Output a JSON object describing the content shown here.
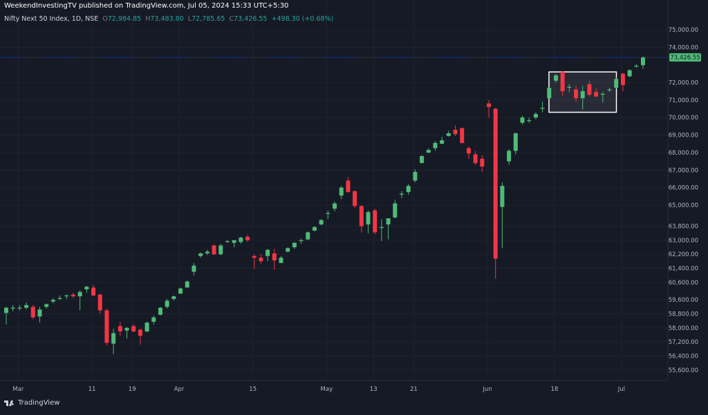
{
  "header": {
    "publish_line": "WeekendInvestingTV published on TradingView.com, Jul 05, 2024 15:33 UTC+5:30",
    "symbol": "Nifty Next 50 Index, 1D, NSE",
    "open_label": "O",
    "open": "72,984.85",
    "high_label": "H",
    "high": "73,483.80",
    "low_label": "L",
    "low": "72,785.65",
    "close_label": "C",
    "close": "73,426.55",
    "change": "+498.30 (+0.68%)"
  },
  "footer": {
    "brand": "TradingView"
  },
  "colors": {
    "background": "#161a25",
    "up": "#4fbb78",
    "down": "#f23645",
    "price_line": "#2962ff",
    "price_label_bg": "#4fbb78",
    "highlight_box": "#ffffff"
  },
  "chart_data": {
    "type": "candlestick",
    "title": "",
    "y_axis_position": "right",
    "ylim": [
      55000,
      75600
    ],
    "y_ticks": [
      "75,000.00",
      "74,000.00",
      "72,000.00",
      "71,000.00",
      "70,000.00",
      "69,000.00",
      "68,000.00",
      "67,000.00",
      "66,000.00",
      "65,000.00",
      "63,800.00",
      "63,000.00",
      "62,200.00",
      "61,400.00",
      "60,600.00",
      "59,600.00",
      "58,800.00",
      "58,000.00",
      "57,200.00",
      "56,400.00",
      "55,600.00"
    ],
    "x_ticks": [
      "Mar",
      "11",
      "19",
      "Apr",
      "15",
      "May",
      "13",
      "21",
      "Jun",
      "18",
      "Jul"
    ],
    "last_price_label": "73,426.55",
    "last_price": 73426.55,
    "highlight_box": {
      "from_candle": 82,
      "to_candle": 90,
      "ylim": [
        70300,
        72600
      ]
    },
    "candles": [
      {
        "o": 58850,
        "h": 59200,
        "l": 58200,
        "c": 59150
      },
      {
        "o": 59100,
        "h": 59300,
        "l": 58950,
        "c": 59150
      },
      {
        "o": 59100,
        "h": 59300,
        "l": 59000,
        "c": 59150
      },
      {
        "o": 59150,
        "h": 59450,
        "l": 59050,
        "c": 59300
      },
      {
        "o": 59200,
        "h": 59300,
        "l": 58500,
        "c": 58600
      },
      {
        "o": 58650,
        "h": 59200,
        "l": 58300,
        "c": 59050
      },
      {
        "o": 59200,
        "h": 59400,
        "l": 59100,
        "c": 59350
      },
      {
        "o": 59500,
        "h": 59700,
        "l": 59400,
        "c": 59600
      },
      {
        "o": 59650,
        "h": 59850,
        "l": 59600,
        "c": 59700
      },
      {
        "o": 59800,
        "h": 59900,
        "l": 59650,
        "c": 59850
      },
      {
        "o": 59900,
        "h": 60000,
        "l": 59700,
        "c": 59800
      },
      {
        "o": 59800,
        "h": 60150,
        "l": 59000,
        "c": 60050
      },
      {
        "o": 60200,
        "h": 60400,
        "l": 60000,
        "c": 60350
      },
      {
        "o": 60300,
        "h": 60450,
        "l": 59800,
        "c": 59850
      },
      {
        "o": 59900,
        "h": 59950,
        "l": 58800,
        "c": 59000
      },
      {
        "o": 59000,
        "h": 59100,
        "l": 57000,
        "c": 57150
      },
      {
        "o": 57100,
        "h": 57950,
        "l": 56500,
        "c": 57700
      },
      {
        "o": 58100,
        "h": 58350,
        "l": 57550,
        "c": 57800
      },
      {
        "o": 57850,
        "h": 58050,
        "l": 57400,
        "c": 58000
      },
      {
        "o": 58100,
        "h": 58200,
        "l": 57750,
        "c": 57800
      },
      {
        "o": 57900,
        "h": 57950,
        "l": 57050,
        "c": 57550
      },
      {
        "o": 57800,
        "h": 58350,
        "l": 57750,
        "c": 58300
      },
      {
        "o": 58350,
        "h": 58700,
        "l": 58200,
        "c": 58600
      },
      {
        "o": 58750,
        "h": 59200,
        "l": 58700,
        "c": 59150
      },
      {
        "o": 59200,
        "h": 59650,
        "l": 59100,
        "c": 59550
      },
      {
        "o": 59650,
        "h": 59850,
        "l": 59550,
        "c": 59800
      },
      {
        "o": 59950,
        "h": 60300,
        "l": 59950,
        "c": 60250
      },
      {
        "o": 60300,
        "h": 60700,
        "l": 60300,
        "c": 60650
      },
      {
        "o": 61200,
        "h": 61700,
        "l": 61000,
        "c": 61550
      },
      {
        "o": 62100,
        "h": 62300,
        "l": 62000,
        "c": 62250
      },
      {
        "o": 62250,
        "h": 62450,
        "l": 62150,
        "c": 62350
      },
      {
        "o": 62700,
        "h": 62750,
        "l": 62150,
        "c": 62200
      },
      {
        "o": 62200,
        "h": 62800,
        "l": 62150,
        "c": 62700
      },
      {
        "o": 62900,
        "h": 63000,
        "l": 62850,
        "c": 62950
      },
      {
        "o": 62850,
        "h": 63000,
        "l": 62600,
        "c": 63000
      },
      {
        "o": 62900,
        "h": 63200,
        "l": 62800,
        "c": 63150
      },
      {
        "o": 63200,
        "h": 63300,
        "l": 62900,
        "c": 63000
      },
      {
        "o": 62100,
        "h": 62200,
        "l": 61350,
        "c": 62000
      },
      {
        "o": 62000,
        "h": 62200,
        "l": 61650,
        "c": 61800
      },
      {
        "o": 62100,
        "h": 62500,
        "l": 61800,
        "c": 62450
      },
      {
        "o": 62250,
        "h": 62500,
        "l": 61300,
        "c": 61850
      },
      {
        "o": 61700,
        "h": 62100,
        "l": 61700,
        "c": 62000
      },
      {
        "o": 62350,
        "h": 62600,
        "l": 62300,
        "c": 62550
      },
      {
        "o": 62600,
        "h": 62900,
        "l": 62500,
        "c": 62850
      },
      {
        "o": 62950,
        "h": 63100,
        "l": 62800,
        "c": 63000
      },
      {
        "o": 63050,
        "h": 63500,
        "l": 63000,
        "c": 63450
      },
      {
        "o": 63550,
        "h": 63800,
        "l": 63500,
        "c": 63750
      },
      {
        "o": 63900,
        "h": 64200,
        "l": 63850,
        "c": 64150
      },
      {
        "o": 64500,
        "h": 64700,
        "l": 64200,
        "c": 64550
      },
      {
        "o": 64800,
        "h": 65200,
        "l": 64650,
        "c": 65100
      },
      {
        "o": 65550,
        "h": 66100,
        "l": 65350,
        "c": 66000
      },
      {
        "o": 66400,
        "h": 66600,
        "l": 65700,
        "c": 65750
      },
      {
        "o": 65800,
        "h": 65850,
        "l": 64850,
        "c": 64950
      },
      {
        "o": 64950,
        "h": 65000,
        "l": 63450,
        "c": 63800
      },
      {
        "o": 63900,
        "h": 64700,
        "l": 63400,
        "c": 64600
      },
      {
        "o": 64700,
        "h": 64800,
        "l": 63350,
        "c": 63450
      },
      {
        "o": 63700,
        "h": 64200,
        "l": 62950,
        "c": 63750
      },
      {
        "o": 63900,
        "h": 64250,
        "l": 63050,
        "c": 64250
      },
      {
        "o": 64300,
        "h": 65300,
        "l": 64250,
        "c": 65100
      },
      {
        "o": 65600,
        "h": 65800,
        "l": 65400,
        "c": 65650
      },
      {
        "o": 65750,
        "h": 66200,
        "l": 65600,
        "c": 66100
      },
      {
        "o": 66400,
        "h": 67050,
        "l": 66300,
        "c": 66900
      },
      {
        "o": 67400,
        "h": 67850,
        "l": 67400,
        "c": 67800
      },
      {
        "o": 68000,
        "h": 68250,
        "l": 67950,
        "c": 68150
      },
      {
        "o": 68250,
        "h": 68650,
        "l": 68100,
        "c": 68550
      },
      {
        "o": 68500,
        "h": 68900,
        "l": 68500,
        "c": 68700
      },
      {
        "o": 68950,
        "h": 69250,
        "l": 68900,
        "c": 69100
      },
      {
        "o": 69300,
        "h": 69550,
        "l": 68950,
        "c": 69050
      },
      {
        "o": 69400,
        "h": 69400,
        "l": 68500,
        "c": 68550
      },
      {
        "o": 68250,
        "h": 68350,
        "l": 67650,
        "c": 67950
      },
      {
        "o": 67900,
        "h": 68100,
        "l": 67300,
        "c": 67400
      },
      {
        "o": 67650,
        "h": 67850,
        "l": 66900,
        "c": 67200
      },
      {
        "o": 70800,
        "h": 71000,
        "l": 70000,
        "c": 70600
      },
      {
        "o": 70500,
        "h": 70550,
        "l": 60800,
        "c": 61950
      },
      {
        "o": 64900,
        "h": 66300,
        "l": 62550,
        "c": 66100
      },
      {
        "o": 67500,
        "h": 68200,
        "l": 67300,
        "c": 68100
      },
      {
        "o": 68100,
        "h": 69150,
        "l": 67900,
        "c": 69100
      },
      {
        "o": 69700,
        "h": 70100,
        "l": 69600,
        "c": 70000
      },
      {
        "o": 69800,
        "h": 70000,
        "l": 69700,
        "c": 69850
      },
      {
        "o": 70000,
        "h": 70300,
        "l": 69900,
        "c": 70200
      },
      {
        "o": 70500,
        "h": 70900,
        "l": 70300,
        "c": 70550
      },
      {
        "o": 71100,
        "h": 71750,
        "l": 71100,
        "c": 71700
      },
      {
        "o": 72100,
        "h": 72500,
        "l": 72000,
        "c": 72400
      },
      {
        "o": 72600,
        "h": 72650,
        "l": 71250,
        "c": 71500
      },
      {
        "o": 71700,
        "h": 71900,
        "l": 71450,
        "c": 71750
      },
      {
        "o": 71600,
        "h": 71800,
        "l": 70900,
        "c": 71100
      },
      {
        "o": 71100,
        "h": 71800,
        "l": 70450,
        "c": 71500
      },
      {
        "o": 71900,
        "h": 72100,
        "l": 71200,
        "c": 71300
      },
      {
        "o": 71450,
        "h": 71650,
        "l": 71150,
        "c": 71200
      },
      {
        "o": 71300,
        "h": 71450,
        "l": 70850,
        "c": 71350
      },
      {
        "o": 71550,
        "h": 71700,
        "l": 71450,
        "c": 71600
      },
      {
        "o": 71700,
        "h": 72300,
        "l": 71650,
        "c": 72200
      },
      {
        "o": 72500,
        "h": 72550,
        "l": 71500,
        "c": 71850
      },
      {
        "o": 72350,
        "h": 72750,
        "l": 72300,
        "c": 72700
      },
      {
        "o": 72900,
        "h": 73050,
        "l": 72850,
        "c": 72950
      },
      {
        "o": 72985,
        "h": 73484,
        "l": 72786,
        "c": 73427
      }
    ]
  }
}
